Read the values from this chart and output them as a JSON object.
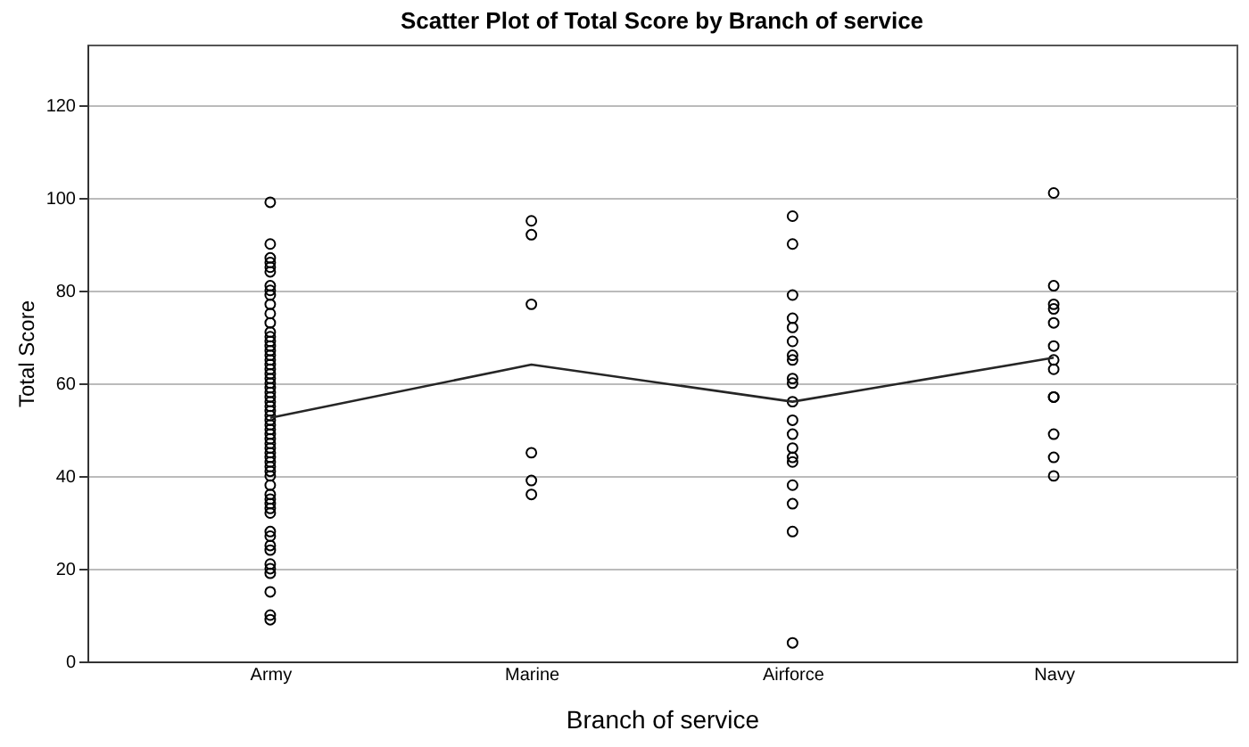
{
  "chart_data": {
    "type": "scatter",
    "title": "Scatter Plot of Total Score by Branch of service",
    "xlabel": "Branch of service",
    "ylabel": "Total Score",
    "categories": [
      "Army",
      "Marine",
      "Airforce",
      "Navy"
    ],
    "ylim": [
      0,
      133
    ],
    "yticks": [
      0,
      20,
      40,
      60,
      80,
      100,
      120
    ],
    "grid": "y",
    "series": [
      {
        "marker": "circle",
        "color": "#000000",
        "x": [
          "Army",
          "Army",
          "Army",
          "Army",
          "Army",
          "Army",
          "Army",
          "Army",
          "Army",
          "Army",
          "Army",
          "Army",
          "Army",
          "Army",
          "Army",
          "Army",
          "Army",
          "Army",
          "Army",
          "Army",
          "Army",
          "Army",
          "Army",
          "Army",
          "Army",
          "Army",
          "Army",
          "Army",
          "Army",
          "Army",
          "Army",
          "Army",
          "Army",
          "Army",
          "Army",
          "Army",
          "Army",
          "Army",
          "Army",
          "Army",
          "Army",
          "Army",
          "Army",
          "Army",
          "Army",
          "Army",
          "Army",
          "Army",
          "Army",
          "Army",
          "Army",
          "Army",
          "Army",
          "Army",
          "Army",
          "Army",
          "Army",
          "Army",
          "Army",
          "Army",
          "Marine",
          "Marine",
          "Marine",
          "Marine",
          "Marine",
          "Marine",
          "Airforce",
          "Airforce",
          "Airforce",
          "Airforce",
          "Airforce",
          "Airforce",
          "Airforce",
          "Airforce",
          "Airforce",
          "Airforce",
          "Airforce",
          "Airforce",
          "Airforce",
          "Airforce",
          "Airforce",
          "Airforce",
          "Airforce",
          "Airforce",
          "Airforce",
          "Airforce",
          "Navy",
          "Navy",
          "Navy",
          "Navy",
          "Navy",
          "Navy",
          "Navy",
          "Navy",
          "Navy",
          "Navy",
          "Navy",
          "Navy",
          "Navy"
        ],
        "values": [
          99,
          90,
          87,
          86,
          85,
          84,
          81,
          80,
          79,
          77,
          75,
          73,
          71,
          70,
          69,
          68,
          67,
          66,
          65,
          64,
          63,
          62,
          61,
          60,
          59,
          58,
          57,
          56,
          55,
          54,
          53,
          52,
          51,
          50,
          49,
          48,
          47,
          46,
          45,
          44,
          43,
          42,
          41,
          40,
          38,
          36,
          35,
          34,
          33,
          32,
          28,
          27,
          25,
          24,
          21,
          20,
          19,
          15,
          10,
          9,
          95,
          92,
          77,
          45,
          39,
          36,
          96,
          90,
          79,
          74,
          72,
          69,
          66,
          65,
          61,
          60,
          56,
          52,
          49,
          46,
          44,
          43,
          38,
          34,
          28,
          4,
          101,
          81,
          77,
          76,
          73,
          68,
          65,
          63,
          57,
          57,
          49,
          44,
          40
        ]
      },
      {
        "type": "line",
        "color": "#262626",
        "line_style": "solid",
        "marker": "none",
        "values": [
          52.5,
          64,
          56,
          65.5
        ]
      }
    ]
  }
}
